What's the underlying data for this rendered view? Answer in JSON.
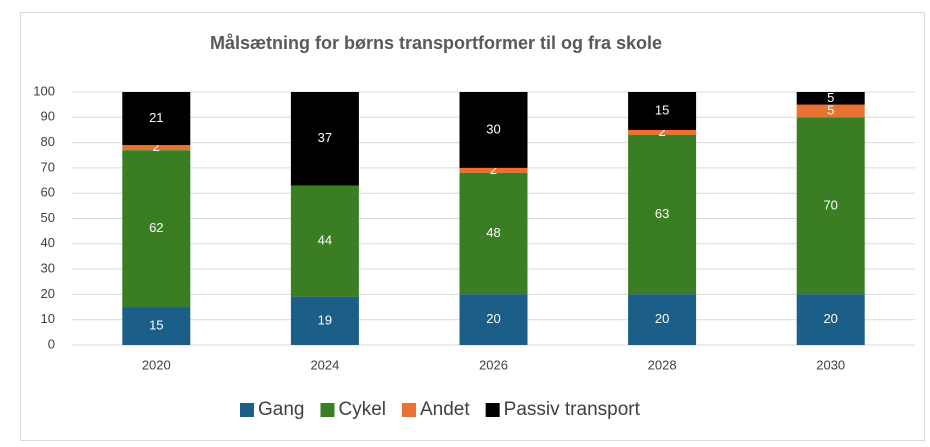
{
  "chart_data": {
    "type": "stacked_bar",
    "title": "Målsætning for børns transportformer til og fra skole",
    "categories": [
      "2020",
      "2024",
      "2026",
      "2028",
      "2030"
    ],
    "series": [
      {
        "name": "Gang",
        "color": "#1b5e87",
        "values": [
          15,
          19,
          20,
          20,
          20
        ]
      },
      {
        "name": "Cykel",
        "color": "#3b7d23",
        "values": [
          62,
          44,
          48,
          63,
          70
        ]
      },
      {
        "name": "Andet",
        "color": "#e97132",
        "values": [
          2,
          null,
          2,
          2,
          5
        ]
      },
      {
        "name": "Passiv transport",
        "color": "#000000",
        "values": [
          21,
          37,
          30,
          15,
          5
        ]
      }
    ],
    "ylim": [
      0,
      100
    ],
    "yticks": [
      0,
      10,
      20,
      30,
      40,
      50,
      60,
      70,
      80,
      90,
      100
    ],
    "grid": true,
    "legend": "bottom"
  }
}
